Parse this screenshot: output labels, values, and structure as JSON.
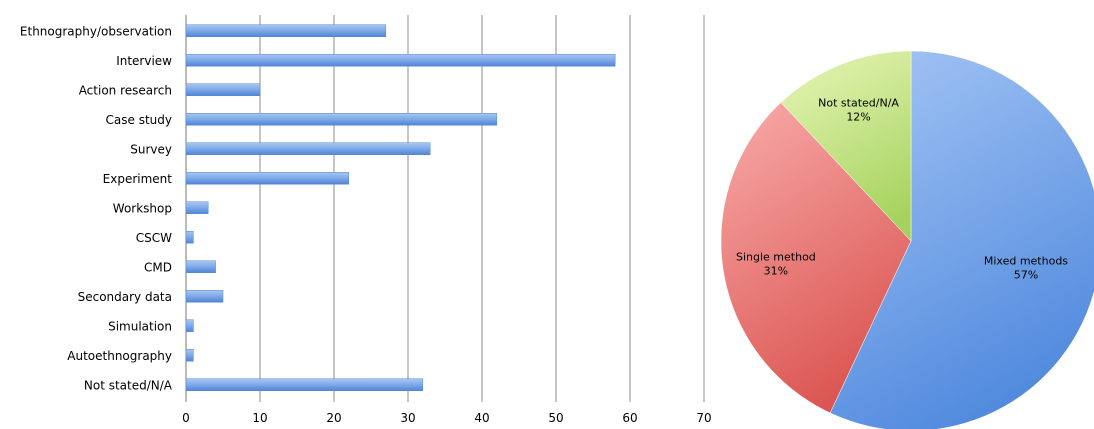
{
  "chart_data": [
    {
      "type": "bar",
      "orientation": "horizontal",
      "categories": [
        "Ethnography/observation",
        "Interview",
        "Action research",
        "Case study",
        "Survey",
        "Experiment",
        "Workshop",
        "CSCW",
        "CMD",
        "Secondary data",
        "Simulation",
        "Autoethnography",
        "Not stated/N/A"
      ],
      "values": [
        27,
        58,
        10,
        42,
        33,
        22,
        3,
        1,
        4,
        5,
        1,
        1,
        32
      ],
      "xlim": [
        0,
        70
      ],
      "xticks": [
        "0",
        "10",
        "20",
        "30",
        "40",
        "50",
        "60",
        "70"
      ],
      "grid": "vertical",
      "colors": {
        "bar": "#6f9fe3",
        "grid": "#8c8c8c"
      }
    },
    {
      "type": "pie",
      "slices": [
        {
          "label": "Mixed methods",
          "value": 57,
          "value_label": "57%",
          "color": "#5a92e2"
        },
        {
          "label": "Single method",
          "value": 31,
          "value_label": "31%",
          "color": "#e4625f"
        },
        {
          "label": "Not stated/N/A",
          "value": 12,
          "value_label": "12%",
          "color": "#b2dc6c"
        }
      ]
    }
  ]
}
